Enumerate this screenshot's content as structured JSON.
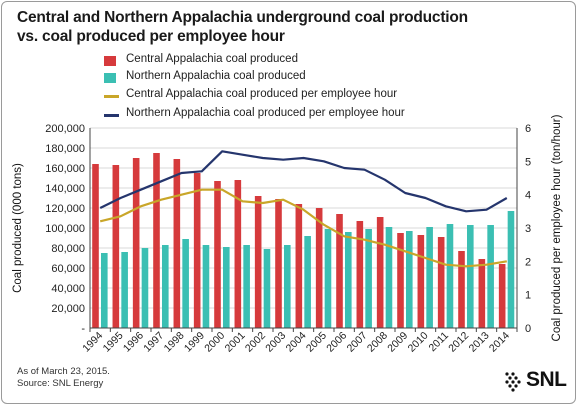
{
  "title_line1": "Central and Northern Appalachia underground coal production",
  "title_line2": "vs. coal produced per employee hour",
  "footnote1": "As of March 23, 2015.",
  "footnote2": "Source: SNL Energy",
  "logo_text": "SNL",
  "colors": {
    "central_bar": "#d63a3c",
    "northern_bar": "#3bbfb3",
    "central_line": "#c9a629",
    "northern_line": "#25356d"
  },
  "chart_data": {
    "type": "bar",
    "categories": [
      "1994",
      "1995",
      "1996",
      "1997",
      "1998",
      "1999",
      "2000",
      "2001",
      "2002",
      "2003",
      "2004",
      "2005",
      "2006",
      "2007",
      "2008",
      "2009",
      "2010",
      "2011",
      "2012",
      "2013",
      "2014"
    ],
    "series": [
      {
        "name": "Central Appalachia coal produced",
        "type": "bar",
        "axis": "left",
        "values": [
          164000,
          163000,
          170000,
          175000,
          169000,
          155000,
          147000,
          148000,
          132000,
          129000,
          124000,
          120000,
          114000,
          107000,
          111000,
          95000,
          93000,
          91000,
          77000,
          69000,
          64000
        ]
      },
      {
        "name": "Northern Appalachia coal produced",
        "type": "bar",
        "axis": "left",
        "values": [
          75000,
          76000,
          80000,
          83000,
          89000,
          83000,
          81000,
          83000,
          79000,
          83000,
          92000,
          99000,
          96000,
          99000,
          101000,
          97000,
          101000,
          104000,
          103000,
          103000,
          117000
        ]
      },
      {
        "name": "Central Appalachia coal produced per employee hour",
        "type": "line",
        "axis": "right",
        "values": [
          3.2,
          3.35,
          3.65,
          3.85,
          4.0,
          4.15,
          4.15,
          3.8,
          3.75,
          3.85,
          3.55,
          3.1,
          2.75,
          2.65,
          2.5,
          2.3,
          2.1,
          1.9,
          1.85,
          1.9,
          2.0
        ]
      },
      {
        "name": "Northern Appalachia coal produced per employee hour",
        "type": "line",
        "axis": "right",
        "values": [
          3.6,
          3.9,
          4.15,
          4.4,
          4.65,
          4.7,
          5.3,
          5.2,
          5.1,
          5.05,
          5.1,
          5.0,
          4.8,
          4.75,
          4.45,
          4.05,
          3.9,
          3.65,
          3.5,
          3.55,
          3.9
        ]
      }
    ],
    "ylabel": "Coal produced (000 tons)",
    "y2label": "Coal produced per employee hour (ton/hour)",
    "ylim": [
      0,
      200000
    ],
    "y2lim": [
      0,
      6
    ],
    "yticks": [
      "200,000",
      "180,000",
      "160,000",
      "140,000",
      "120,000",
      "100,000",
      "80,000",
      "60,000",
      "40,000",
      "20,000",
      "-"
    ],
    "y2ticks": [
      "6",
      "5",
      "4",
      "3",
      "2",
      "1",
      "0"
    ],
    "grid": true,
    "legend": "top-left"
  }
}
